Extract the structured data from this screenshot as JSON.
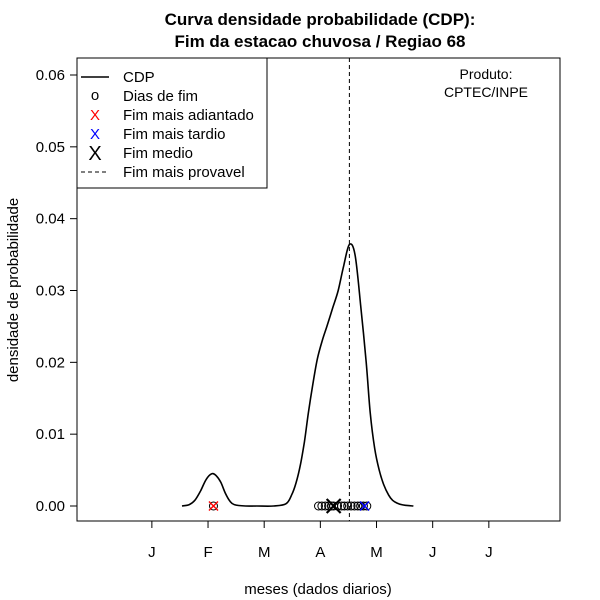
{
  "chart_data": {
    "type": "line",
    "title": [
      "Curva densidade probabilidade (CDP):",
      "Fim da estacao chuvosa / Regiao 68"
    ],
    "xlabel": "meses (dados diarios)",
    "ylabel": "densidade de probabilidade",
    "xlim": [
      0,
      8.6
    ],
    "ylim": [
      0,
      0.062
    ],
    "x_ticks": [
      {
        "x": 1.333,
        "label": "J"
      },
      {
        "x": 2.333,
        "label": "F"
      },
      {
        "x": 3.333,
        "label": "M"
      },
      {
        "x": 4.333,
        "label": "A"
      },
      {
        "x": 5.333,
        "label": "M"
      },
      {
        "x": 6.333,
        "label": "J"
      },
      {
        "x": 7.333,
        "label": "J"
      }
    ],
    "y_ticks": [
      0,
      0.01,
      0.02,
      0.03,
      0.04,
      0.05,
      0.06
    ],
    "y_tick_labels": [
      "0.00",
      "0.01",
      "0.02",
      "0.03",
      "0.04",
      "0.05",
      "0.06"
    ],
    "series": [
      {
        "name": "CDP",
        "x": [
          1.87,
          2.0,
          2.1,
          2.2,
          2.3,
          2.4,
          2.48,
          2.56,
          2.64,
          2.72,
          2.8,
          3.0,
          3.2,
          3.5,
          3.72,
          3.82,
          3.9,
          3.98,
          4.05,
          4.12,
          4.2,
          4.28,
          4.37,
          4.45,
          4.55,
          4.65,
          4.75,
          4.85,
          4.95,
          5.05,
          5.15,
          5.22,
          5.3,
          5.38,
          5.46,
          5.55,
          5.62,
          5.7,
          5.8,
          5.9,
          5.99
        ],
        "y": [
          0.0,
          0.0002,
          0.0008,
          0.0021,
          0.0037,
          0.0045,
          0.0042,
          0.0033,
          0.0018,
          0.0007,
          0.0002,
          0.0,
          0.0,
          0.0,
          0.0003,
          0.0015,
          0.0032,
          0.0058,
          0.009,
          0.013,
          0.017,
          0.0205,
          0.0231,
          0.025,
          0.0275,
          0.03,
          0.0335,
          0.0364,
          0.035,
          0.028,
          0.02,
          0.013,
          0.008,
          0.005,
          0.003,
          0.0015,
          0.0008,
          0.0004,
          0.00015,
          5e-05,
          0.0
        ]
      }
    ],
    "dias_de_fim_x": [
      4.3,
      4.36,
      4.42,
      4.48,
      4.53,
      4.57,
      4.64,
      4.71,
      4.76,
      4.82,
      4.88,
      4.94,
      5.0,
      5.05,
      5.1,
      5.16
    ],
    "fim_mais_adiantado_x": 2.43,
    "fim_mais_tardio_x": 5.12,
    "fim_medio_x": 4.57,
    "fim_mais_provavel_x": 4.85,
    "legend": {
      "position": "top-left",
      "entries": [
        "CDP",
        "Dias de fim",
        "Fim mais adiantado",
        "Fim mais tardio",
        "Fim medio",
        "Fim mais provavel"
      ],
      "symbols": [
        "—",
        "o",
        "X",
        "X",
        "X",
        "- -"
      ]
    },
    "annotation": [
      "Produto:",
      "CPTEC/INPE"
    ],
    "colors": {
      "adiantado": "#ff0000",
      "tardio": "#0000ff",
      "line": "#000000"
    }
  }
}
